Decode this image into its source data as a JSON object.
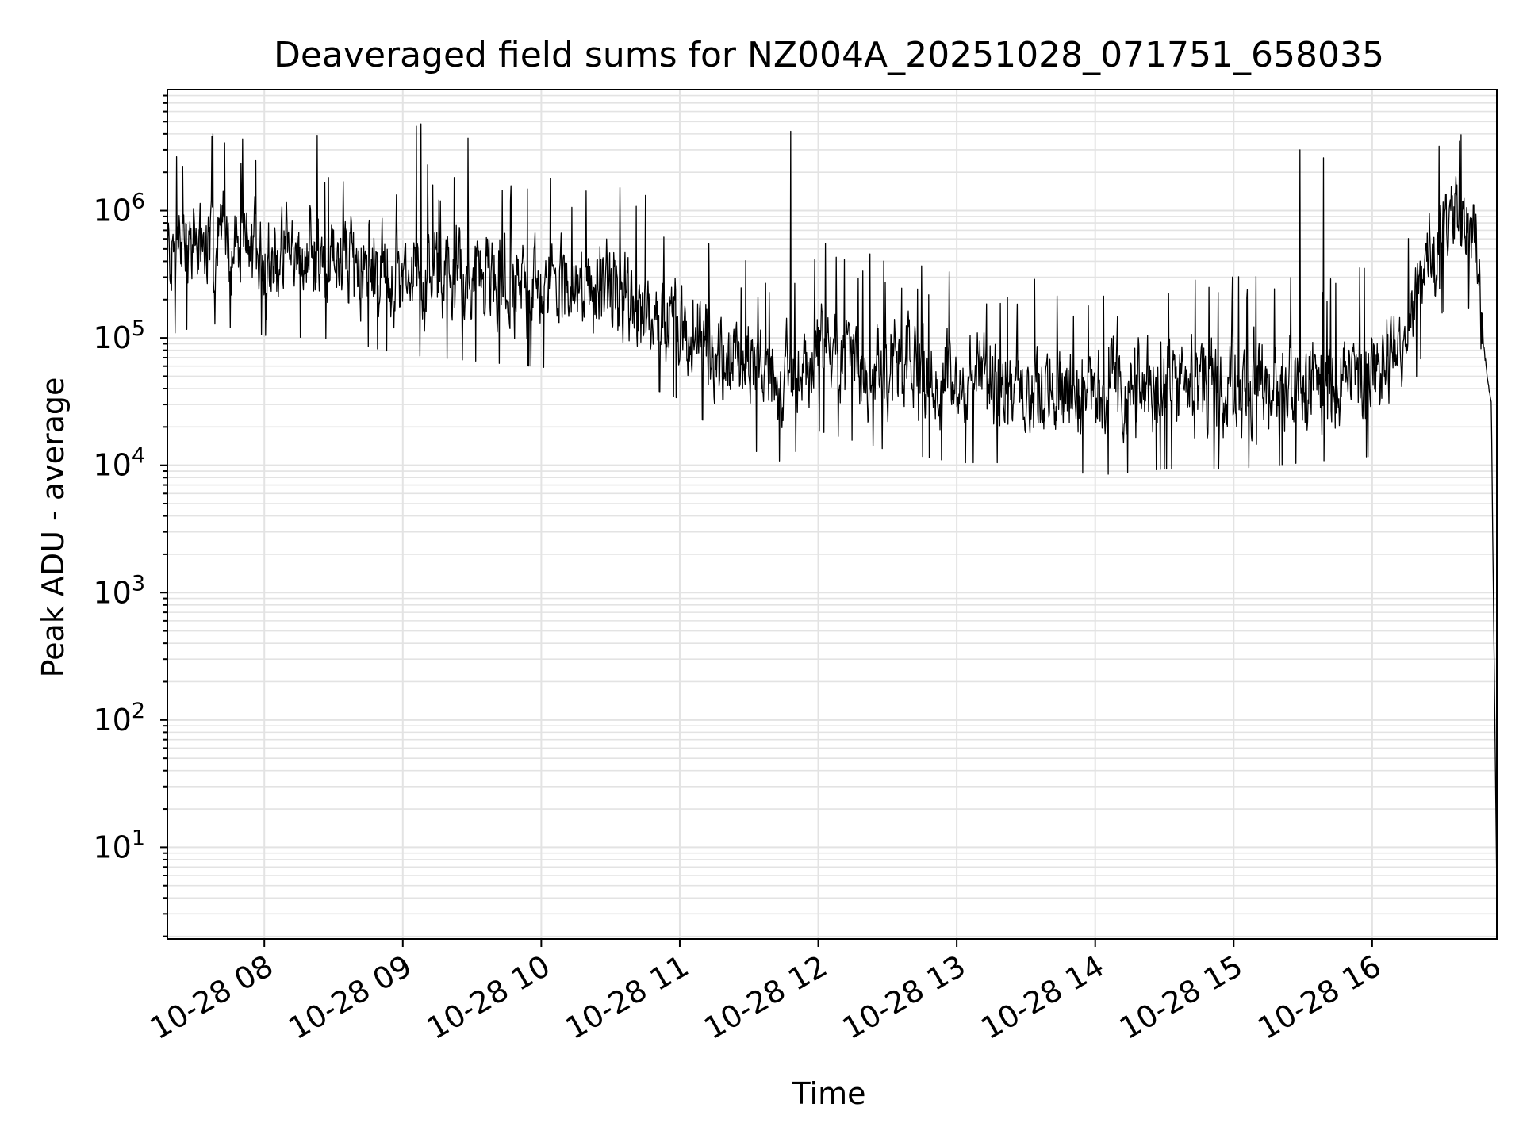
{
  "chart_data": {
    "type": "line",
    "title": "Deaveraged field sums for NZ004A_20251028_071751_658035",
    "xlabel": "Time",
    "ylabel": "Peak ADU - average",
    "yscale": "log",
    "ylim_exponent": [
      0.28,
      6.95
    ],
    "y_ticks": [
      {
        "base": "10",
        "exp": "1",
        "value": 10
      },
      {
        "base": "10",
        "exp": "2",
        "value": 100
      },
      {
        "base": "10",
        "exp": "3",
        "value": 1000
      },
      {
        "base": "10",
        "exp": "4",
        "value": 10000
      },
      {
        "base": "10",
        "exp": "5",
        "value": 100000
      },
      {
        "base": "10",
        "exp": "6",
        "value": 1000000
      }
    ],
    "xlim_hours": [
      7.3,
      16.9
    ],
    "x_ticks": [
      {
        "label": "10-28 08",
        "hour": 8
      },
      {
        "label": "10-28 09",
        "hour": 9
      },
      {
        "label": "10-28 10",
        "hour": 10
      },
      {
        "label": "10-28 11",
        "hour": 11
      },
      {
        "label": "10-28 12",
        "hour": 12
      },
      {
        "label": "10-28 13",
        "hour": 13
      },
      {
        "label": "10-28 14",
        "hour": 14
      },
      {
        "label": "10-28 15",
        "hour": 15
      },
      {
        "label": "10-28 16",
        "hour": 16
      }
    ],
    "grid": true,
    "series": [
      {
        "name": "field sums",
        "color": "#000000",
        "baseline_log10": [
          [
            7.3,
            5.65
          ],
          [
            7.6,
            5.75
          ],
          [
            8.0,
            5.65
          ],
          [
            8.5,
            5.62
          ],
          [
            9.0,
            5.5
          ],
          [
            9.5,
            5.45
          ],
          [
            10.0,
            5.4
          ],
          [
            10.5,
            5.35
          ],
          [
            11.0,
            5.15
          ],
          [
            11.3,
            4.85
          ],
          [
            11.75,
            4.65
          ],
          [
            12.0,
            4.9
          ],
          [
            12.5,
            4.75
          ],
          [
            13.0,
            4.65
          ],
          [
            13.5,
            4.65
          ],
          [
            14.0,
            4.55
          ],
          [
            14.5,
            4.6
          ],
          [
            15.0,
            4.6
          ],
          [
            15.5,
            4.65
          ],
          [
            16.0,
            4.7
          ],
          [
            16.25,
            5.0
          ],
          [
            16.4,
            5.7
          ],
          [
            16.65,
            6.0
          ],
          [
            16.75,
            5.7
          ],
          [
            16.8,
            4.95
          ],
          [
            16.86,
            4.5
          ],
          [
            16.9,
            0.6
          ]
        ],
        "noise_amplitude_log10": 0.45,
        "peaks": [
          {
            "hour": 7.63,
            "value": 4000000
          },
          {
            "hour": 8.38,
            "value": 3900000
          },
          {
            "hour": 9.1,
            "value": 4600000
          },
          {
            "hour": 9.13,
            "value": 4800000
          },
          {
            "hour": 9.47,
            "value": 3700000
          },
          {
            "hour": 11.8,
            "value": 4200000
          },
          {
            "hour": 15.48,
            "value": 3000000
          },
          {
            "hour": 15.65,
            "value": 2600000
          },
          {
            "hour": 16.63,
            "value": 3500000
          }
        ],
        "sample_count": 2600
      }
    ]
  }
}
